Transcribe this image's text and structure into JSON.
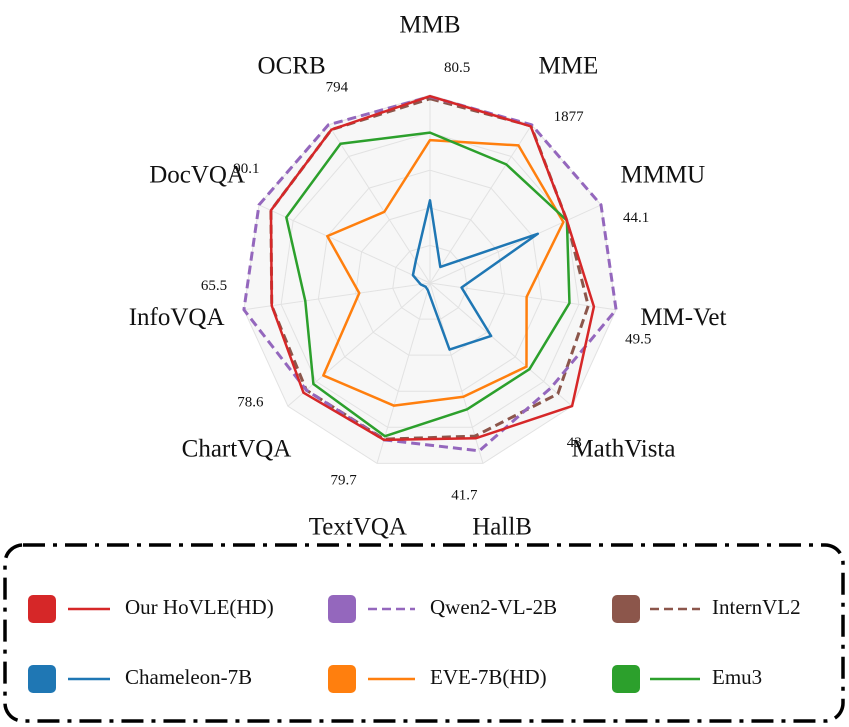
{
  "chart_data": {
    "type": "radar",
    "categories": [
      "MMB",
      "MME",
      "MMMU",
      "MM-Vet",
      "MathVista",
      "HallB",
      "TextVQA",
      "ChartVQA",
      "InfoVQA",
      "DocVQA",
      "OCRB"
    ],
    "axis_max": [
      80.5,
      1877,
      44.1,
      49.5,
      43,
      41.7,
      79.7,
      78.6,
      65.5,
      90.1,
      794
    ],
    "series": [
      {
        "name": "Our HoVLE(HD)",
        "color": "#d62728",
        "linestyle": "solid",
        "values": [
          80.0,
          1860,
          35.3,
          43.6,
          43,
          35.9,
          69.3,
          70.0,
          55.7,
          83.8,
          770
        ]
      },
      {
        "name": "Qwen2-VL-2B",
        "color": "#9467bd",
        "linestyle": "dashed",
        "values": [
          79.8,
          1877,
          44.1,
          49.5,
          36.6,
          38.8,
          69.3,
          68.4,
          65.5,
          90.1,
          794
        ]
      },
      {
        "name": "InternVL2",
        "color": "#8c564b",
        "linestyle": "dashed",
        "values": [
          78.9,
          1865,
          35.3,
          42.1,
          38.7,
          35.4,
          69.0,
          68.4,
          55.7,
          83.8,
          770
        ]
      },
      {
        "name": "Chameleon-7B",
        "color": "#1f77b4",
        "linestyle": "solid",
        "values": [
          35.4,
          190,
          27.8,
          8.4,
          18.5,
          15.4,
          3.2,
          2.4,
          3.3,
          9.0,
          111
        ]
      },
      {
        "name": "EVE-7B(HD)",
        "color": "#ff7f0e",
        "linestyle": "solid",
        "values": [
          61.2,
          1633,
          34.4,
          25.7,
          29.2,
          26.3,
          54.2,
          59.0,
          24.9,
          54.1,
          357
        ]
      },
      {
        "name": "Emu3",
        "color": "#2ca02c",
        "linestyle": "solid",
        "values": [
          64.4,
          1408,
          35.3,
          37.1,
          30.1,
          29.2,
          67.7,
          64.5,
          43.9,
          75.7,
          699
        ]
      }
    ]
  }
}
